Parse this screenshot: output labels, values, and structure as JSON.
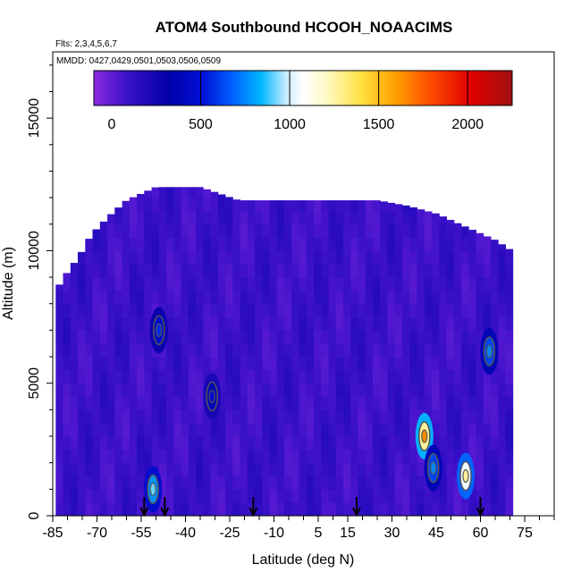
{
  "chart_data": {
    "type": "heatmap",
    "title": "ATOM4 Southbound HCOOH_NOAACIMS",
    "flights_label": "Flts: 2,3,4,5,6,7",
    "dates_label": "MMDD: 0427,0429,0501,0503,0506,0509",
    "xlabel": "Latitude (deg N)",
    "ylabel": "Altitude (m)",
    "xlim": [
      -85,
      85
    ],
    "ylim": [
      0,
      17500
    ],
    "x_tick_labels": [
      "-85",
      "-70",
      "-55",
      "-40",
      "-25",
      "-10",
      "5",
      "15",
      "30",
      "45",
      "60",
      "75"
    ],
    "x_ticks": [
      -85,
      -70,
      -55,
      -40,
      -25,
      -10,
      5,
      15,
      30,
      45,
      60,
      75
    ],
    "x_minor_ticks": [
      -80,
      -75,
      -65,
      -60,
      -50,
      -45,
      -35,
      -30,
      -20,
      -15,
      -5,
      0,
      10,
      20,
      25,
      35,
      40,
      50,
      55,
      65,
      70,
      80,
      85
    ],
    "y_tick_labels": [
      "0",
      "5000",
      "10000",
      "15000"
    ],
    "y_ticks": [
      0,
      5000,
      10000,
      15000
    ],
    "colorbar": {
      "tick_labels": [
        "0",
        "500",
        "1000",
        "1500",
        "2000"
      ],
      "ticks": [
        0,
        500,
        1000,
        1500,
        2000
      ],
      "range": [
        -100,
        2250
      ],
      "colors": [
        "#8a2be2",
        "#3a10c8",
        "#0000a8",
        "#0010d8",
        "#0060ff",
        "#00b8ff",
        "#c8ecff",
        "#ffffff",
        "#fff8c0",
        "#ffe040",
        "#ffa000",
        "#ff5000",
        "#e00000",
        "#a01010"
      ]
    },
    "profile_arrows_lat": [
      -54,
      -47,
      -17,
      18,
      60
    ],
    "hotspots": [
      {
        "lat": -51,
        "alt": 1000,
        "value": 900
      },
      {
        "lat": -49,
        "alt": 7000,
        "value": 500
      },
      {
        "lat": -31,
        "alt": 4500,
        "value": 400
      },
      {
        "lat": 41,
        "alt": 3000,
        "value": 1750
      },
      {
        "lat": 44,
        "alt": 1800,
        "value": 700
      },
      {
        "lat": 55,
        "alt": 1500,
        "value": 1400
      },
      {
        "lat": 63,
        "alt": 6200,
        "value": 700
      }
    ],
    "background_value": 80
  }
}
